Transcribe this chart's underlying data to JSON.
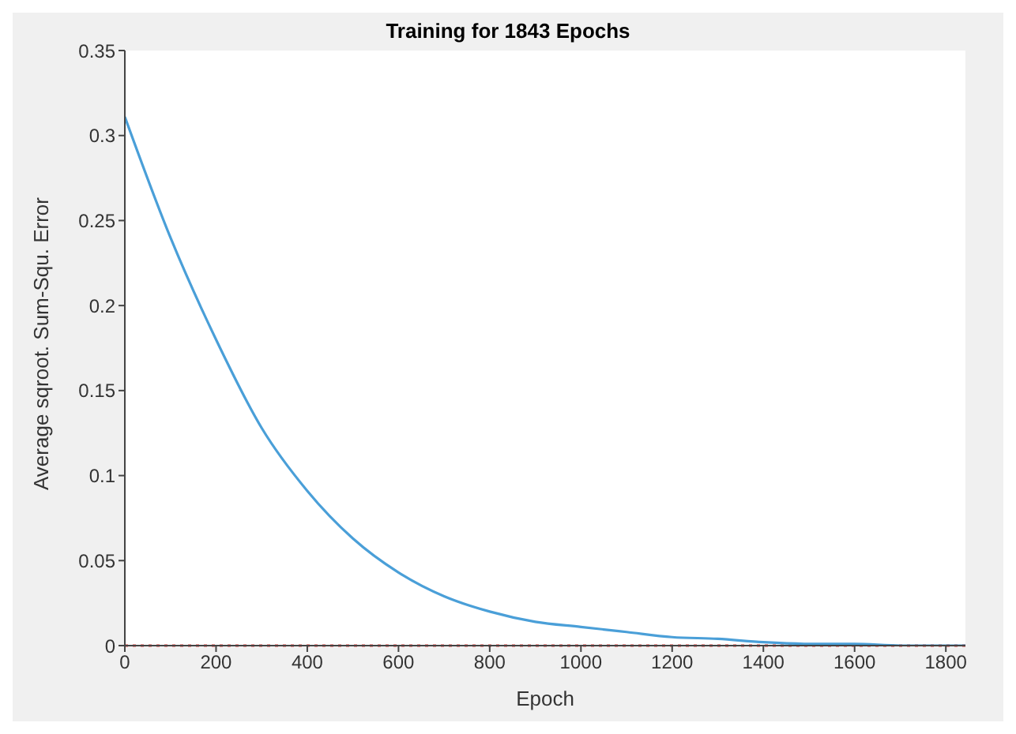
{
  "chart_data": {
    "type": "line",
    "title": "Training for 1843 Epochs",
    "xlabel": "Epoch",
    "ylabel": "Average sqroot. Sum-Squ. Error",
    "series": [
      {
        "color": "#4a9fd8",
        "x": [
          0,
          100,
          200,
          300,
          400,
          500,
          600,
          700,
          800,
          900,
          1000,
          1100,
          1200,
          1300,
          1400,
          1500,
          1600,
          1700,
          1843
        ],
        "values": [
          0.311,
          0.24,
          0.18,
          0.128,
          0.091,
          0.063,
          0.043,
          0.029,
          0.02,
          0.014,
          0.011,
          0.008,
          0.005,
          0.004,
          0.002,
          0.001,
          0.001,
          0,
          0
        ]
      }
    ],
    "xlim": [
      0,
      1843
    ],
    "xticks": [
      0,
      200,
      400,
      600,
      800,
      1000,
      1200,
      1400,
      1600,
      1800
    ],
    "ylim": [
      0,
      0.35
    ],
    "yticks": [
      0,
      0.05,
      0.1,
      0.15,
      0.2,
      0.25,
      0.3,
      0.35
    ],
    "ref_lines": [
      {
        "axis": "y",
        "value": 0,
        "color": "#e03030",
        "line_style": "dotted"
      }
    ],
    "grid": false,
    "legend": false,
    "marker": "none",
    "line_style": "solid"
  }
}
